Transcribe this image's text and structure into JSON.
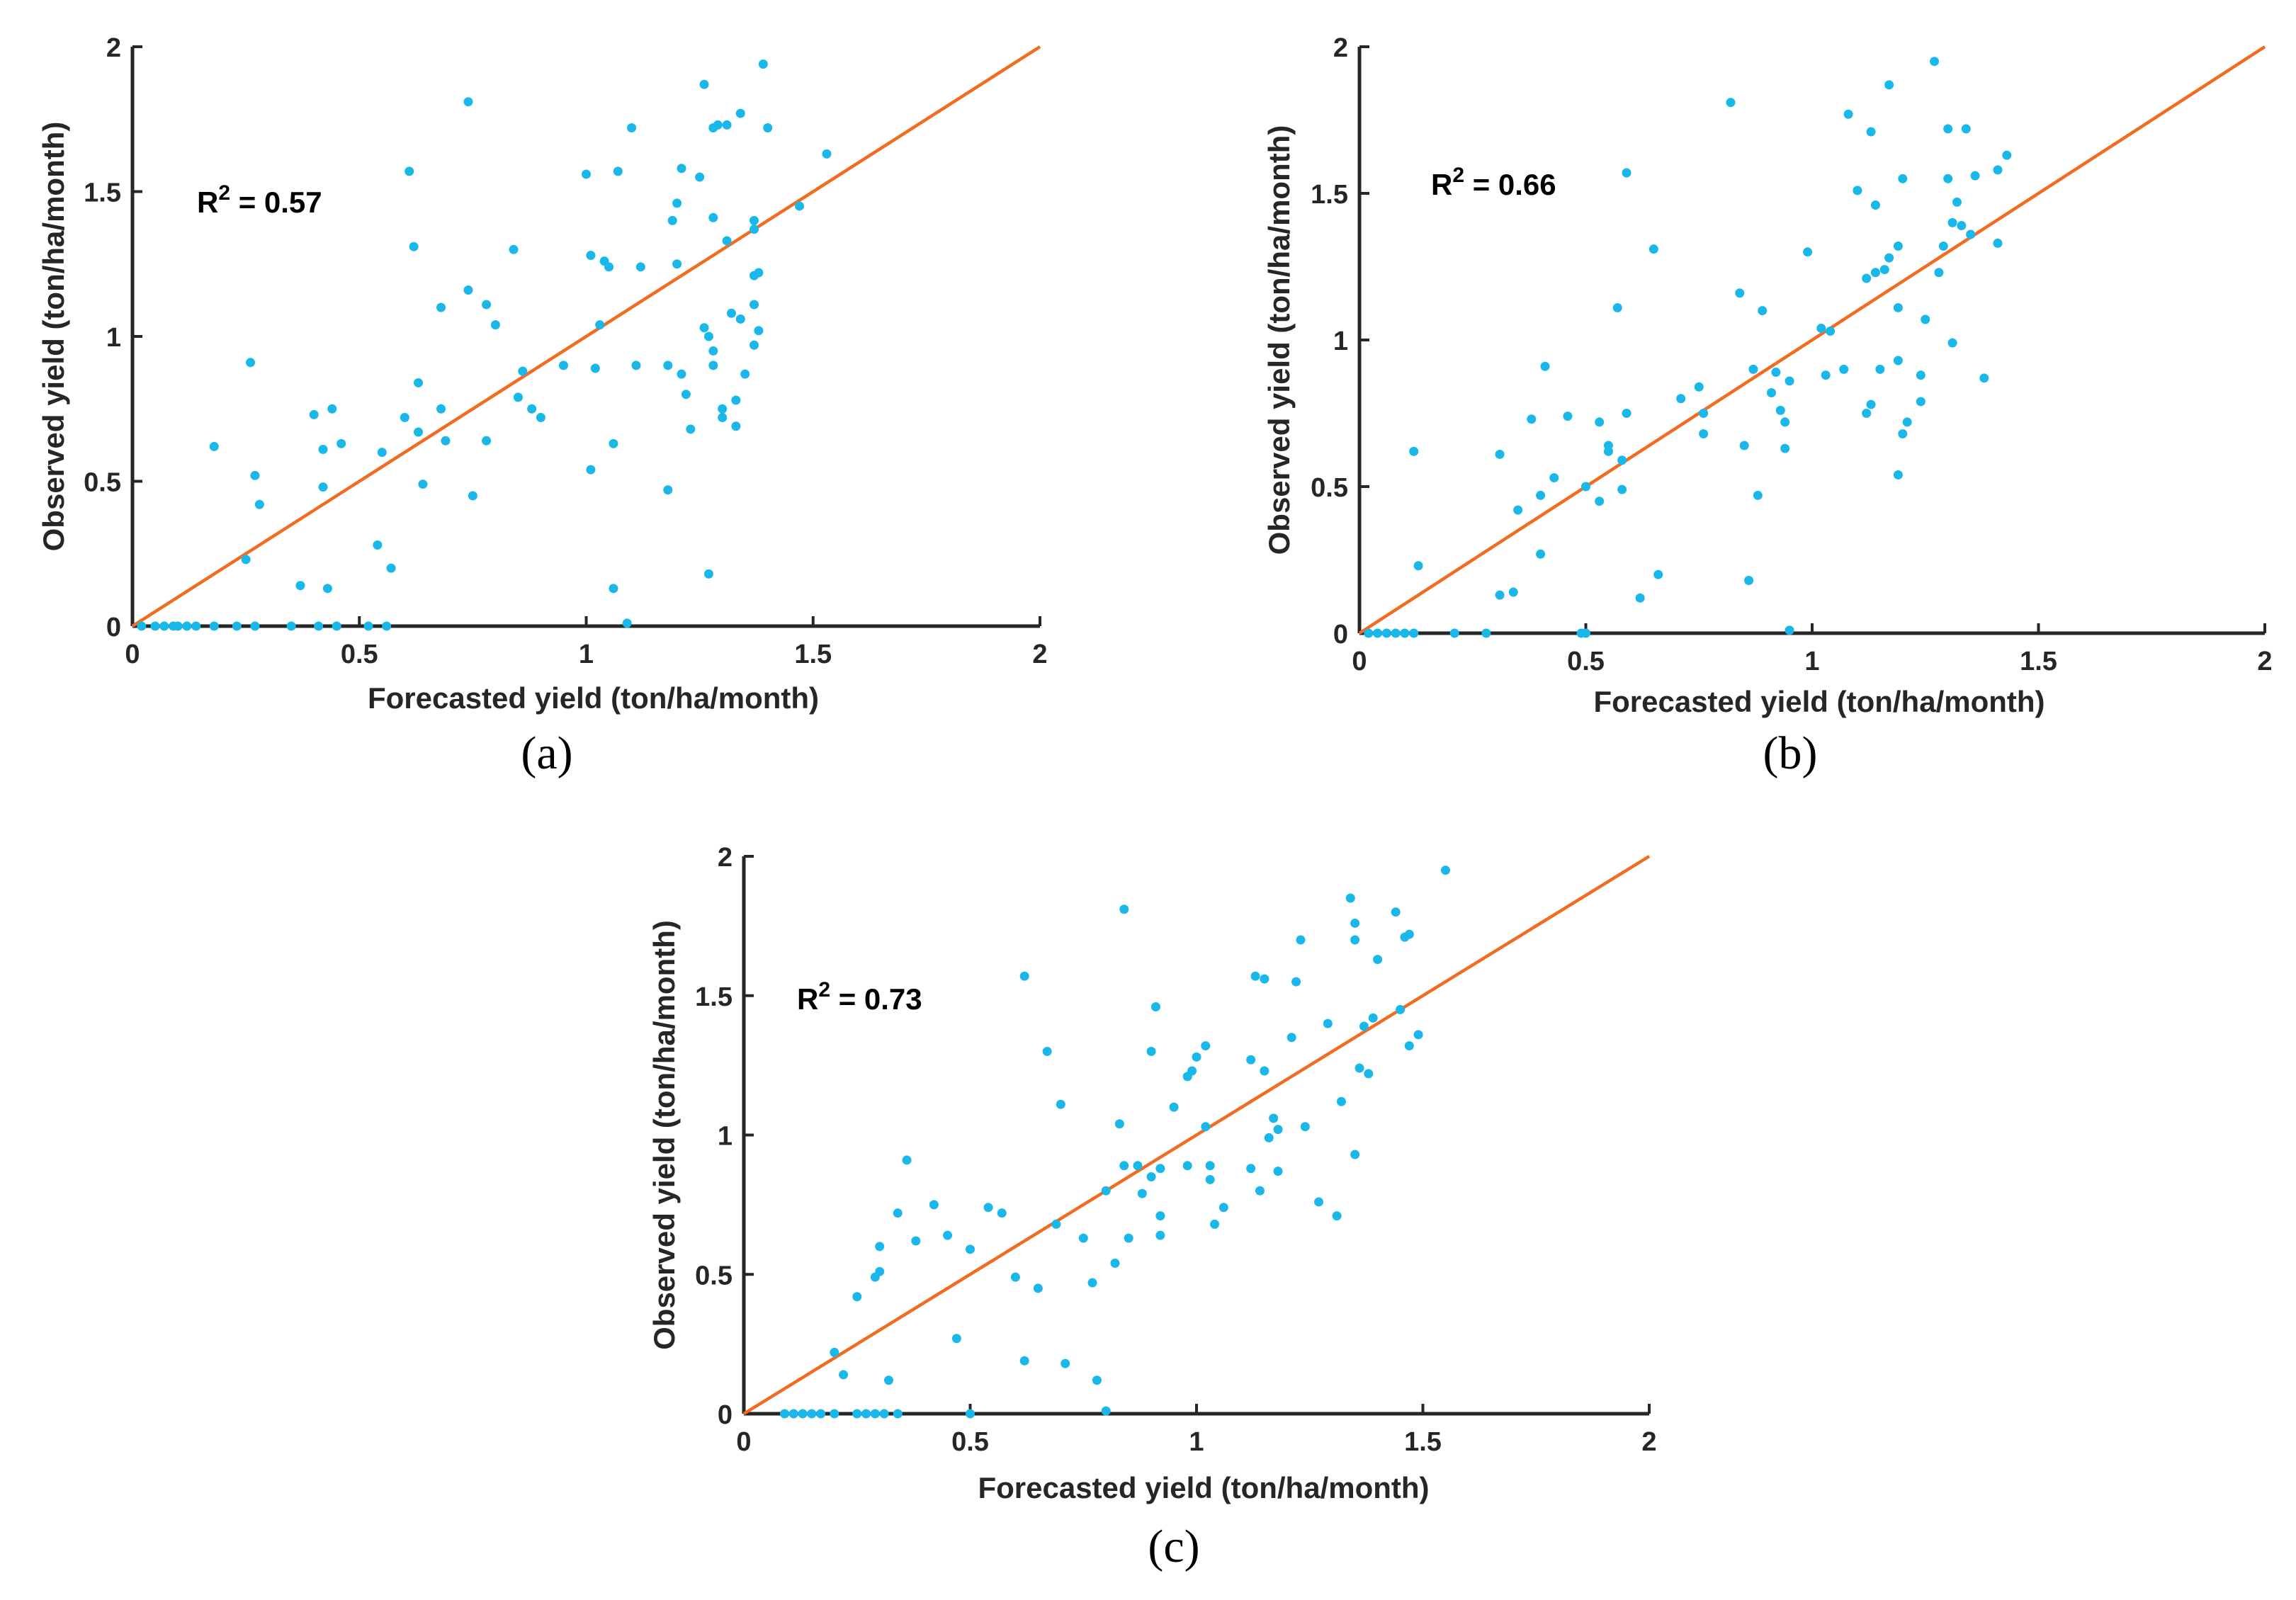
{
  "colors": {
    "points": "#1ab8ea",
    "line": "#f26b21",
    "axis": "#262626",
    "background": "#ffffff"
  },
  "chart_data": [
    {
      "type": "scatter",
      "panel_label": "(a)",
      "xlabel": "Forecasted yield (ton/ha/month)",
      "ylabel": "Observed yield (ton/ha/month)",
      "r2_prefix": "R",
      "r2_sup": "2",
      "r2_value": " = 0.57",
      "xlim": [
        0,
        2
      ],
      "ylim": [
        0,
        2
      ],
      "xticks": [
        0,
        0.5,
        1,
        1.5,
        2
      ],
      "xtick_labels": [
        "0",
        "0.5",
        "1",
        "1.5",
        "2"
      ],
      "yticks": [
        0,
        0.5,
        1,
        1.5,
        2
      ],
      "ytick_labels": [
        "0",
        "0.5",
        "1",
        "1.5",
        "2"
      ],
      "line": {
        "x": [
          0,
          2
        ],
        "y": [
          0,
          2
        ],
        "name": "1:1 line"
      },
      "points": [
        [
          0.02,
          0
        ],
        [
          0.05,
          0
        ],
        [
          0.07,
          0
        ],
        [
          0.09,
          0
        ],
        [
          0.1,
          0
        ],
        [
          0.12,
          0
        ],
        [
          0.14,
          0
        ],
        [
          0.18,
          0
        ],
        [
          0.23,
          0
        ],
        [
          0.27,
          0
        ],
        [
          0.35,
          0
        ],
        [
          0.41,
          0
        ],
        [
          0.45,
          0
        ],
        [
          0.52,
          0
        ],
        [
          0.56,
          0
        ],
        [
          1.09,
          0.01
        ],
        [
          0.26,
          0.91
        ],
        [
          0.27,
          0.52
        ],
        [
          0.28,
          0.42
        ],
        [
          0.25,
          0.23
        ],
        [
          0.18,
          0.62
        ],
        [
          0.37,
          0.14
        ],
        [
          0.4,
          0.73
        ],
        [
          0.43,
          0.13
        ],
        [
          0.42,
          0.61
        ],
        [
          0.42,
          0.48
        ],
        [
          0.44,
          0.75
        ],
        [
          0.46,
          0.63
        ],
        [
          0.54,
          0.28
        ],
        [
          0.55,
          0.6
        ],
        [
          0.57,
          0.2
        ],
        [
          0.6,
          0.72
        ],
        [
          0.61,
          1.57
        ],
        [
          0.62,
          1.31
        ],
        [
          0.63,
          0.67
        ],
        [
          0.63,
          0.84
        ],
        [
          0.64,
          0.49
        ],
        [
          0.68,
          0.75
        ],
        [
          0.68,
          1.1
        ],
        [
          0.69,
          0.64
        ],
        [
          0.74,
          1.81
        ],
        [
          0.74,
          1.16
        ],
        [
          0.75,
          0.45
        ],
        [
          0.78,
          1.11
        ],
        [
          0.78,
          0.64
        ],
        [
          0.8,
          1.04
        ],
        [
          0.84,
          1.3
        ],
        [
          0.85,
          0.79
        ],
        [
          0.86,
          0.88
        ],
        [
          0.88,
          0.75
        ],
        [
          0.9,
          0.72
        ],
        [
          0.95,
          0.9
        ],
        [
          1.0,
          1.56
        ],
        [
          1.01,
          1.28
        ],
        [
          1.01,
          0.54
        ],
        [
          1.02,
          0.89
        ],
        [
          1.03,
          1.04
        ],
        [
          1.04,
          1.26
        ],
        [
          1.05,
          1.24
        ],
        [
          1.06,
          0.63
        ],
        [
          1.06,
          0.13
        ],
        [
          1.07,
          1.57
        ],
        [
          1.1,
          1.72
        ],
        [
          1.11,
          0.9
        ],
        [
          1.12,
          1.24
        ],
        [
          1.18,
          0.9
        ],
        [
          1.18,
          0.47
        ],
        [
          1.19,
          1.4
        ],
        [
          1.2,
          1.46
        ],
        [
          1.2,
          1.25
        ],
        [
          1.21,
          0.87
        ],
        [
          1.21,
          1.58
        ],
        [
          1.22,
          0.8
        ],
        [
          1.23,
          0.68
        ],
        [
          1.25,
          1.55
        ],
        [
          1.26,
          1.03
        ],
        [
          1.26,
          1.87
        ],
        [
          1.27,
          0.18
        ],
        [
          1.27,
          1.0
        ],
        [
          1.28,
          1.72
        ],
        [
          1.28,
          0.95
        ],
        [
          1.28,
          1.41
        ],
        [
          1.28,
          0.9
        ],
        [
          1.29,
          1.73
        ],
        [
          1.3,
          0.72
        ],
        [
          1.3,
          0.75
        ],
        [
          1.31,
          1.33
        ],
        [
          1.31,
          1.73
        ],
        [
          1.32,
          1.08
        ],
        [
          1.33,
          0.78
        ],
        [
          1.33,
          0.69
        ],
        [
          1.34,
          1.06
        ],
        [
          1.34,
          1.77
        ],
        [
          1.35,
          0.87
        ],
        [
          1.37,
          1.11
        ],
        [
          1.37,
          1.21
        ],
        [
          1.37,
          0.97
        ],
        [
          1.37,
          1.37
        ],
        [
          1.37,
          1.4
        ],
        [
          1.38,
          1.22
        ],
        [
          1.38,
          1.02
        ],
        [
          1.39,
          1.94
        ],
        [
          1.4,
          1.72
        ],
        [
          1.47,
          1.45
        ],
        [
          1.53,
          1.63
        ]
      ]
    },
    {
      "type": "scatter",
      "panel_label": "(b)",
      "xlabel": "Forecasted yield (ton/ha/month)",
      "ylabel": "Observed yield (ton/ha/month)",
      "r2_prefix": "R",
      "r2_sup": "2",
      "r2_value": " = 0.66",
      "xlim": [
        0,
        2
      ],
      "ylim": [
        0,
        2
      ],
      "xticks": [
        0,
        0.5,
        1,
        1.5,
        2
      ],
      "xtick_labels": [
        "0",
        "0.5",
        "1",
        "1.5",
        "2"
      ],
      "yticks": [
        0,
        0.5,
        1,
        1.5,
        2
      ],
      "ytick_labels": [
        "0",
        "0.5",
        "1",
        "1.5",
        "2"
      ],
      "line": {
        "x": [
          0,
          2
        ],
        "y": [
          0,
          2
        ],
        "name": "1:1 line"
      },
      "points": [
        [
          0.02,
          0
        ],
        [
          0.04,
          0
        ],
        [
          0.06,
          0
        ],
        [
          0.08,
          0
        ],
        [
          0.1,
          0
        ],
        [
          0.12,
          0
        ],
        [
          0.21,
          0
        ],
        [
          0.28,
          0
        ],
        [
          0.49,
          0
        ],
        [
          0.5,
          0
        ],
        [
          0.95,
          0.01
        ],
        [
          0.12,
          0.62
        ],
        [
          0.13,
          0.23
        ],
        [
          0.31,
          0.61
        ],
        [
          0.31,
          0.13
        ],
        [
          0.34,
          0.14
        ],
        [
          0.35,
          0.42
        ],
        [
          0.38,
          0.73
        ],
        [
          0.4,
          0.27
        ],
        [
          0.4,
          0.47
        ],
        [
          0.41,
          0.91
        ],
        [
          0.43,
          0.53
        ],
        [
          0.46,
          0.74
        ],
        [
          0.5,
          0.5
        ],
        [
          0.53,
          0.72
        ],
        [
          0.53,
          0.45
        ],
        [
          0.55,
          0.64
        ],
        [
          0.55,
          0.62
        ],
        [
          0.57,
          1.11
        ],
        [
          0.58,
          0.59
        ],
        [
          0.58,
          0.49
        ],
        [
          0.59,
          0.75
        ],
        [
          0.59,
          1.57
        ],
        [
          0.62,
          0.12
        ],
        [
          0.65,
          1.31
        ],
        [
          0.66,
          0.2
        ],
        [
          0.71,
          0.8
        ],
        [
          0.75,
          0.84
        ],
        [
          0.76,
          0.75
        ],
        [
          0.76,
          0.68
        ],
        [
          0.82,
          1.81
        ],
        [
          0.84,
          1.16
        ],
        [
          0.85,
          0.64
        ],
        [
          0.86,
          0.18
        ],
        [
          0.87,
          0.9
        ],
        [
          0.88,
          0.47
        ],
        [
          0.89,
          1.1
        ],
        [
          0.91,
          0.82
        ],
        [
          0.92,
          0.89
        ],
        [
          0.93,
          0.76
        ],
        [
          0.94,
          0.63
        ],
        [
          0.94,
          0.72
        ],
        [
          0.95,
          0.86
        ],
        [
          0.99,
          1.3
        ],
        [
          1.02,
          1.04
        ],
        [
          1.03,
          0.88
        ],
        [
          1.04,
          1.03
        ],
        [
          1.07,
          0.9
        ],
        [
          1.08,
          1.77
        ],
        [
          1.1,
          1.51
        ],
        [
          1.12,
          1.21
        ],
        [
          1.12,
          0.75
        ],
        [
          1.13,
          0.78
        ],
        [
          1.13,
          1.71
        ],
        [
          1.14,
          1.46
        ],
        [
          1.14,
          1.23
        ],
        [
          1.15,
          0.9
        ],
        [
          1.16,
          1.24
        ],
        [
          1.17,
          1.87
        ],
        [
          1.17,
          1.28
        ],
        [
          1.19,
          0.54
        ],
        [
          1.19,
          1.11
        ],
        [
          1.19,
          0.93
        ],
        [
          1.19,
          1.32
        ],
        [
          1.2,
          1.55
        ],
        [
          1.2,
          0.68
        ],
        [
          1.21,
          0.72
        ],
        [
          1.24,
          0.88
        ],
        [
          1.24,
          0.79
        ],
        [
          1.25,
          1.07
        ],
        [
          1.27,
          1.95
        ],
        [
          1.28,
          1.23
        ],
        [
          1.29,
          1.32
        ],
        [
          1.3,
          1.72
        ],
        [
          1.3,
          1.55
        ],
        [
          1.31,
          1.4
        ],
        [
          1.31,
          0.99
        ],
        [
          1.32,
          1.47
        ],
        [
          1.33,
          1.39
        ],
        [
          1.34,
          1.72
        ],
        [
          1.35,
          1.36
        ],
        [
          1.36,
          1.56
        ],
        [
          1.38,
          0.87
        ],
        [
          1.41,
          1.58
        ],
        [
          1.41,
          1.33
        ],
        [
          1.43,
          1.63
        ]
      ]
    },
    {
      "type": "scatter",
      "panel_label": "(c)",
      "xlabel": "Forecasted yield (ton/ha/month)",
      "ylabel": "Observed yield (ton/ha/month)",
      "r2_prefix": "R",
      "r2_sup": "2",
      "r2_value": " = 0.73",
      "xlim": [
        0,
        2
      ],
      "ylim": [
        0,
        2
      ],
      "xticks": [
        0,
        0.5,
        1,
        1.5,
        2
      ],
      "xtick_labels": [
        "0",
        "0.5",
        "1",
        "1.5",
        "2"
      ],
      "yticks": [
        0,
        0.5,
        1,
        1.5,
        2
      ],
      "ytick_labels": [
        "0",
        "0.5",
        "1",
        "1.5",
        "2"
      ],
      "line": {
        "x": [
          0,
          2
        ],
        "y": [
          0,
          2
        ],
        "name": "1:1 line"
      },
      "points": [
        [
          0.09,
          0
        ],
        [
          0.11,
          0
        ],
        [
          0.13,
          0
        ],
        [
          0.15,
          0
        ],
        [
          0.17,
          0
        ],
        [
          0.2,
          0
        ],
        [
          0.25,
          0
        ],
        [
          0.27,
          0
        ],
        [
          0.29,
          0
        ],
        [
          0.31,
          0
        ],
        [
          0.34,
          0
        ],
        [
          0.5,
          0
        ],
        [
          0.8,
          0.01
        ],
        [
          0.2,
          0.22
        ],
        [
          0.22,
          0.14
        ],
        [
          0.25,
          0.42
        ],
        [
          0.29,
          0.49
        ],
        [
          0.3,
          0.51
        ],
        [
          0.3,
          0.6
        ],
        [
          0.32,
          0.12
        ],
        [
          0.34,
          0.72
        ],
        [
          0.36,
          0.91
        ],
        [
          0.38,
          0.62
        ],
        [
          0.42,
          0.75
        ],
        [
          0.45,
          0.64
        ],
        [
          0.47,
          0.27
        ],
        [
          0.5,
          0.59
        ],
        [
          0.54,
          0.74
        ],
        [
          0.57,
          0.72
        ],
        [
          0.6,
          0.49
        ],
        [
          0.62,
          0.19
        ],
        [
          0.62,
          1.57
        ],
        [
          0.65,
          0.45
        ],
        [
          0.67,
          1.3
        ],
        [
          0.69,
          0.68
        ],
        [
          0.7,
          1.11
        ],
        [
          0.71,
          0.18
        ],
        [
          0.75,
          0.63
        ],
        [
          0.77,
          0.47
        ],
        [
          0.78,
          0.12
        ],
        [
          0.8,
          0.8
        ],
        [
          0.82,
          0.54
        ],
        [
          0.83,
          1.04
        ],
        [
          0.84,
          1.81
        ],
        [
          0.84,
          0.89
        ],
        [
          0.85,
          0.63
        ],
        [
          0.87,
          0.89
        ],
        [
          0.88,
          0.79
        ],
        [
          0.9,
          0.85
        ],
        [
          0.9,
          1.3
        ],
        [
          0.91,
          1.46
        ],
        [
          0.92,
          0.88
        ],
        [
          0.92,
          0.71
        ],
        [
          0.92,
          0.64
        ],
        [
          0.95,
          1.1
        ],
        [
          0.98,
          0.89
        ],
        [
          0.98,
          1.21
        ],
        [
          0.99,
          1.23
        ],
        [
          1.0,
          1.28
        ],
        [
          1.02,
          1.32
        ],
        [
          1.02,
          1.03
        ],
        [
          1.03,
          0.84
        ],
        [
          1.03,
          0.89
        ],
        [
          1.04,
          0.68
        ],
        [
          1.06,
          0.74
        ],
        [
          1.12,
          0.88
        ],
        [
          1.12,
          1.27
        ],
        [
          1.13,
          1.57
        ],
        [
          1.14,
          0.8
        ],
        [
          1.15,
          1.56
        ],
        [
          1.15,
          1.23
        ],
        [
          1.16,
          0.99
        ],
        [
          1.17,
          1.06
        ],
        [
          1.18,
          0.87
        ],
        [
          1.18,
          1.02
        ],
        [
          1.21,
          1.35
        ],
        [
          1.22,
          1.55
        ],
        [
          1.23,
          1.7
        ],
        [
          1.24,
          1.03
        ],
        [
          1.27,
          0.76
        ],
        [
          1.29,
          1.4
        ],
        [
          1.31,
          0.71
        ],
        [
          1.32,
          1.12
        ],
        [
          1.34,
          1.85
        ],
        [
          1.35,
          0.93
        ],
        [
          1.35,
          1.7
        ],
        [
          1.35,
          1.76
        ],
        [
          1.36,
          1.24
        ],
        [
          1.37,
          1.39
        ],
        [
          1.38,
          1.22
        ],
        [
          1.39,
          1.42
        ],
        [
          1.4,
          1.63
        ],
        [
          1.44,
          1.8
        ],
        [
          1.45,
          1.45
        ],
        [
          1.46,
          1.71
        ],
        [
          1.47,
          1.72
        ],
        [
          1.47,
          1.32
        ],
        [
          1.49,
          1.36
        ],
        [
          1.55,
          1.95
        ]
      ]
    }
  ]
}
